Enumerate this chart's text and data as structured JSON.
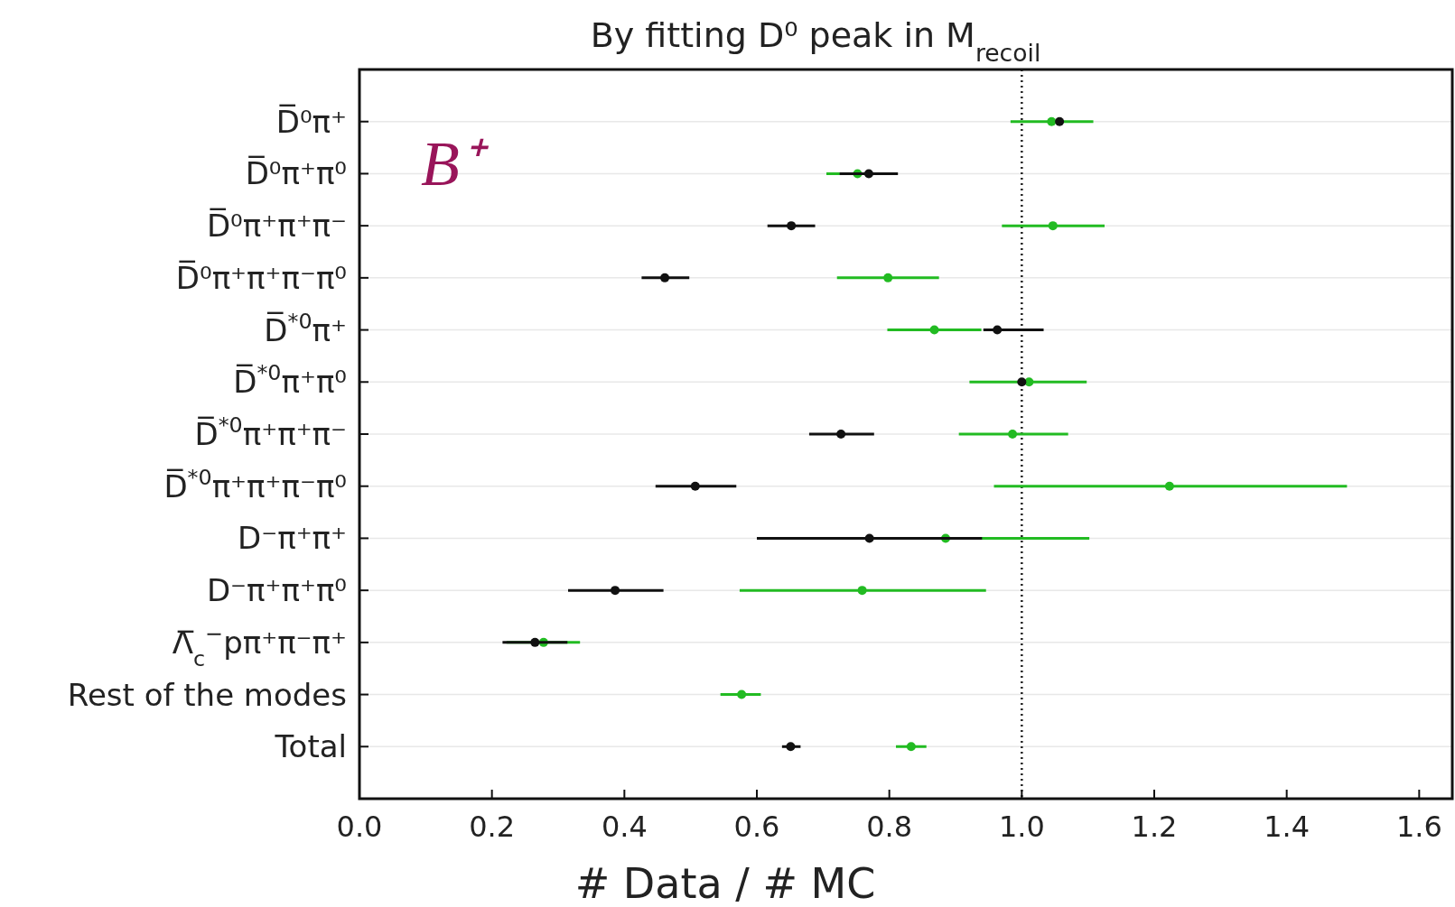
{
  "chart_data": {
    "type": "scatter",
    "orientation": "horizontal",
    "title": "By fitting D⁰ peak in M$_{recoil}$",
    "xlabel": "# Data / # MC",
    "categories": [
      "D̅⁰π⁺",
      "D̅⁰π⁺π⁰",
      "D̅⁰π⁺π⁺π⁻",
      "D̅⁰π⁺π⁺π⁻π⁰",
      "D̅$^{*0}$π⁺",
      "D̅$^{*0}$π⁺π⁰",
      "D̅$^{*0}$π⁺π⁺π⁻",
      "D̅$^{*0}$π⁺π⁺π⁻π⁰",
      "D⁻π⁺π⁺",
      "D⁻π⁺π⁺π⁰",
      "Λ̅$_{c}$$^{−}$pπ⁺π⁻π⁺",
      "Rest of the modes",
      "Total"
    ],
    "series": [
      {
        "color": "#22bb22",
        "values": [
          1.045,
          0.752,
          1.047,
          0.798,
          0.868,
          1.011,
          0.986,
          1.223,
          0.885,
          0.759,
          0.278,
          0.577,
          0.833
        ],
        "errors": [
          [
            0.983,
            1.108
          ],
          [
            0.705,
            0.802
          ],
          [
            0.97,
            1.125
          ],
          [
            0.721,
            0.875
          ],
          [
            0.797,
            0.939
          ],
          [
            0.921,
            1.098
          ],
          [
            0.905,
            1.07
          ],
          [
            0.958,
            1.491
          ],
          [
            0.665,
            1.102
          ],
          [
            0.574,
            0.946
          ],
          [
            0.222,
            0.333
          ],
          [
            0.545,
            0.606
          ],
          [
            0.81,
            0.856
          ]
        ]
      },
      {
        "color": "#111111",
        "values": [
          1.057,
          0.769,
          0.652,
          0.461,
          0.963,
          1.0,
          0.727,
          0.507,
          0.77,
          0.386,
          0.265,
          null,
          0.651
        ],
        "errors": [
          null,
          [
            0.725,
            0.813
          ],
          [
            0.616,
            0.688
          ],
          [
            0.426,
            0.498
          ],
          [
            0.942,
            1.033
          ],
          null,
          [
            0.679,
            0.777
          ],
          [
            0.447,
            0.569
          ],
          [
            0.6,
            0.94
          ],
          [
            0.315,
            0.459
          ],
          [
            0.216,
            0.314
          ],
          null,
          [
            0.638,
            0.666
          ]
        ]
      }
    ],
    "xlim": [
      0,
      1.65
    ],
    "xticks": [
      {
        "value": 0,
        "label": "0.0"
      },
      0.2,
      0.4,
      0.6,
      0.8,
      {
        "value": 1,
        "label": "1.0"
      },
      1.2,
      1.4,
      1.6
    ],
    "ref_lines": [
      {
        "axis": "x",
        "value": 1,
        "line_style": "dotted",
        "color": "#222222"
      }
    ],
    "annotations": [
      "B⁺"
    ],
    "grid": "y",
    "marker": "circle"
  }
}
